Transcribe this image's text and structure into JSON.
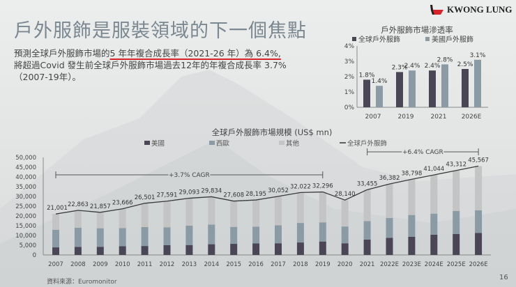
{
  "slide": {
    "title": "戶外服飾是服裝領域的下一個焦點",
    "body_line1_prefix": "預測全球戶外服飾市場的",
    "body_line1_highlight": "5 年年複合成長率（2021-26 年）為 6.4%,",
    "body_line2": "將超過Covid 發生前全球戶外服飾市場過去12年的年複合成長率 3.7%",
    "body_line3": "（2007-19年）。",
    "source": "資料來源：Euromonitor",
    "page_number": "16",
    "logo_text": "KWONG LUNG"
  },
  "colors": {
    "us": "#4a4655",
    "europe": "#8b9ba6",
    "other": "#c4c4c4",
    "line": "#3a3a3a",
    "accent": "#d6242a"
  },
  "chart_data": [
    {
      "type": "bar",
      "title": "戶外服飾市場滲透率",
      "categories": [
        "2007",
        "2019",
        "2021",
        "2026E"
      ],
      "series": [
        {
          "name": "全球戶外服飾",
          "values": [
            1.8,
            2.3,
            2.4,
            2.5
          ],
          "labels": [
            "1.8%",
            "2.3%",
            "2.4%",
            "2.5%"
          ]
        },
        {
          "name": "美國戶外服飾",
          "values": [
            1.4,
            2.4,
            2.8,
            3.1
          ],
          "labels": [
            "1.4%",
            "2.4%",
            "2.8%",
            "3.1%"
          ]
        }
      ],
      "yticks": [
        "0%",
        "1%",
        "2%",
        "3%",
        "4%"
      ],
      "ylim": [
        0,
        4
      ],
      "legend": "top"
    },
    {
      "type": "bar",
      "stacked": true,
      "title": "全球戶外服飾市場規模 (US$ mn)",
      "categories": [
        "2007",
        "2008",
        "2009",
        "2010",
        "2011",
        "2012",
        "2013",
        "2014",
        "2015",
        "2016",
        "2017",
        "2018",
        "2019",
        "2020",
        "2021",
        "2022E",
        "2023E",
        "2024E",
        "2025E",
        "2026E"
      ],
      "series": [
        {
          "name": "美國",
          "values": [
            3900,
            4100,
            4200,
            4500,
            4600,
            5000,
            5100,
            5500,
            5700,
            5900,
            6000,
            6400,
            6900,
            6000,
            7900,
            8800,
            9300,
            10400,
            10800,
            11300
          ]
        },
        {
          "name": "西歐",
          "values": [
            9000,
            9900,
            9500,
            9300,
            9700,
            9200,
            9900,
            10100,
            8700,
            8600,
            9200,
            10000,
            9800,
            8600,
            9500,
            10200,
            11200,
            10800,
            11800,
            11600
          ]
        },
        {
          "name": "其他",
          "values": [
            8101,
            8863,
            8157,
            9866,
            12201,
            13391,
            14093,
            14234,
            13208,
            13695,
            14852,
            15622,
            15596,
            13540,
            16055,
            17382,
            18298,
            19844,
            20712,
            22667
          ]
        },
        {
          "name": "全球戶外服飾",
          "type": "line",
          "values": [
            21001,
            22863,
            21857,
            23666,
            26501,
            27591,
            29093,
            29834,
            27608,
            28195,
            30052,
            32022,
            32296,
            28140,
            33455,
            36382,
            38798,
            41044,
            43312,
            45567
          ],
          "labels": [
            "21,001",
            "22,863",
            "21,857",
            "23,666",
            "26,501",
            "27,591",
            "29,093",
            "29,834",
            "27,608",
            "28,195",
            "30,052",
            "32,022",
            "32,296",
            "28,140",
            "33,455",
            "36,382",
            "38,798",
            "41,044",
            "43,312",
            "45,567"
          ]
        }
      ],
      "yticks": [
        "0",
        "5,000",
        "10,000",
        "15,000",
        "20,000",
        "25,000",
        "30,000",
        "35,000",
        "40,000",
        "45,000",
        "50,000"
      ],
      "ylim": [
        0,
        50000
      ],
      "legend": "top",
      "annotations": [
        {
          "text": "+3.7% CAGR",
          "from": "2007",
          "to": "2019"
        },
        {
          "text": "+6.4% CAGR",
          "from": "2021",
          "to": "2026E"
        }
      ]
    }
  ]
}
